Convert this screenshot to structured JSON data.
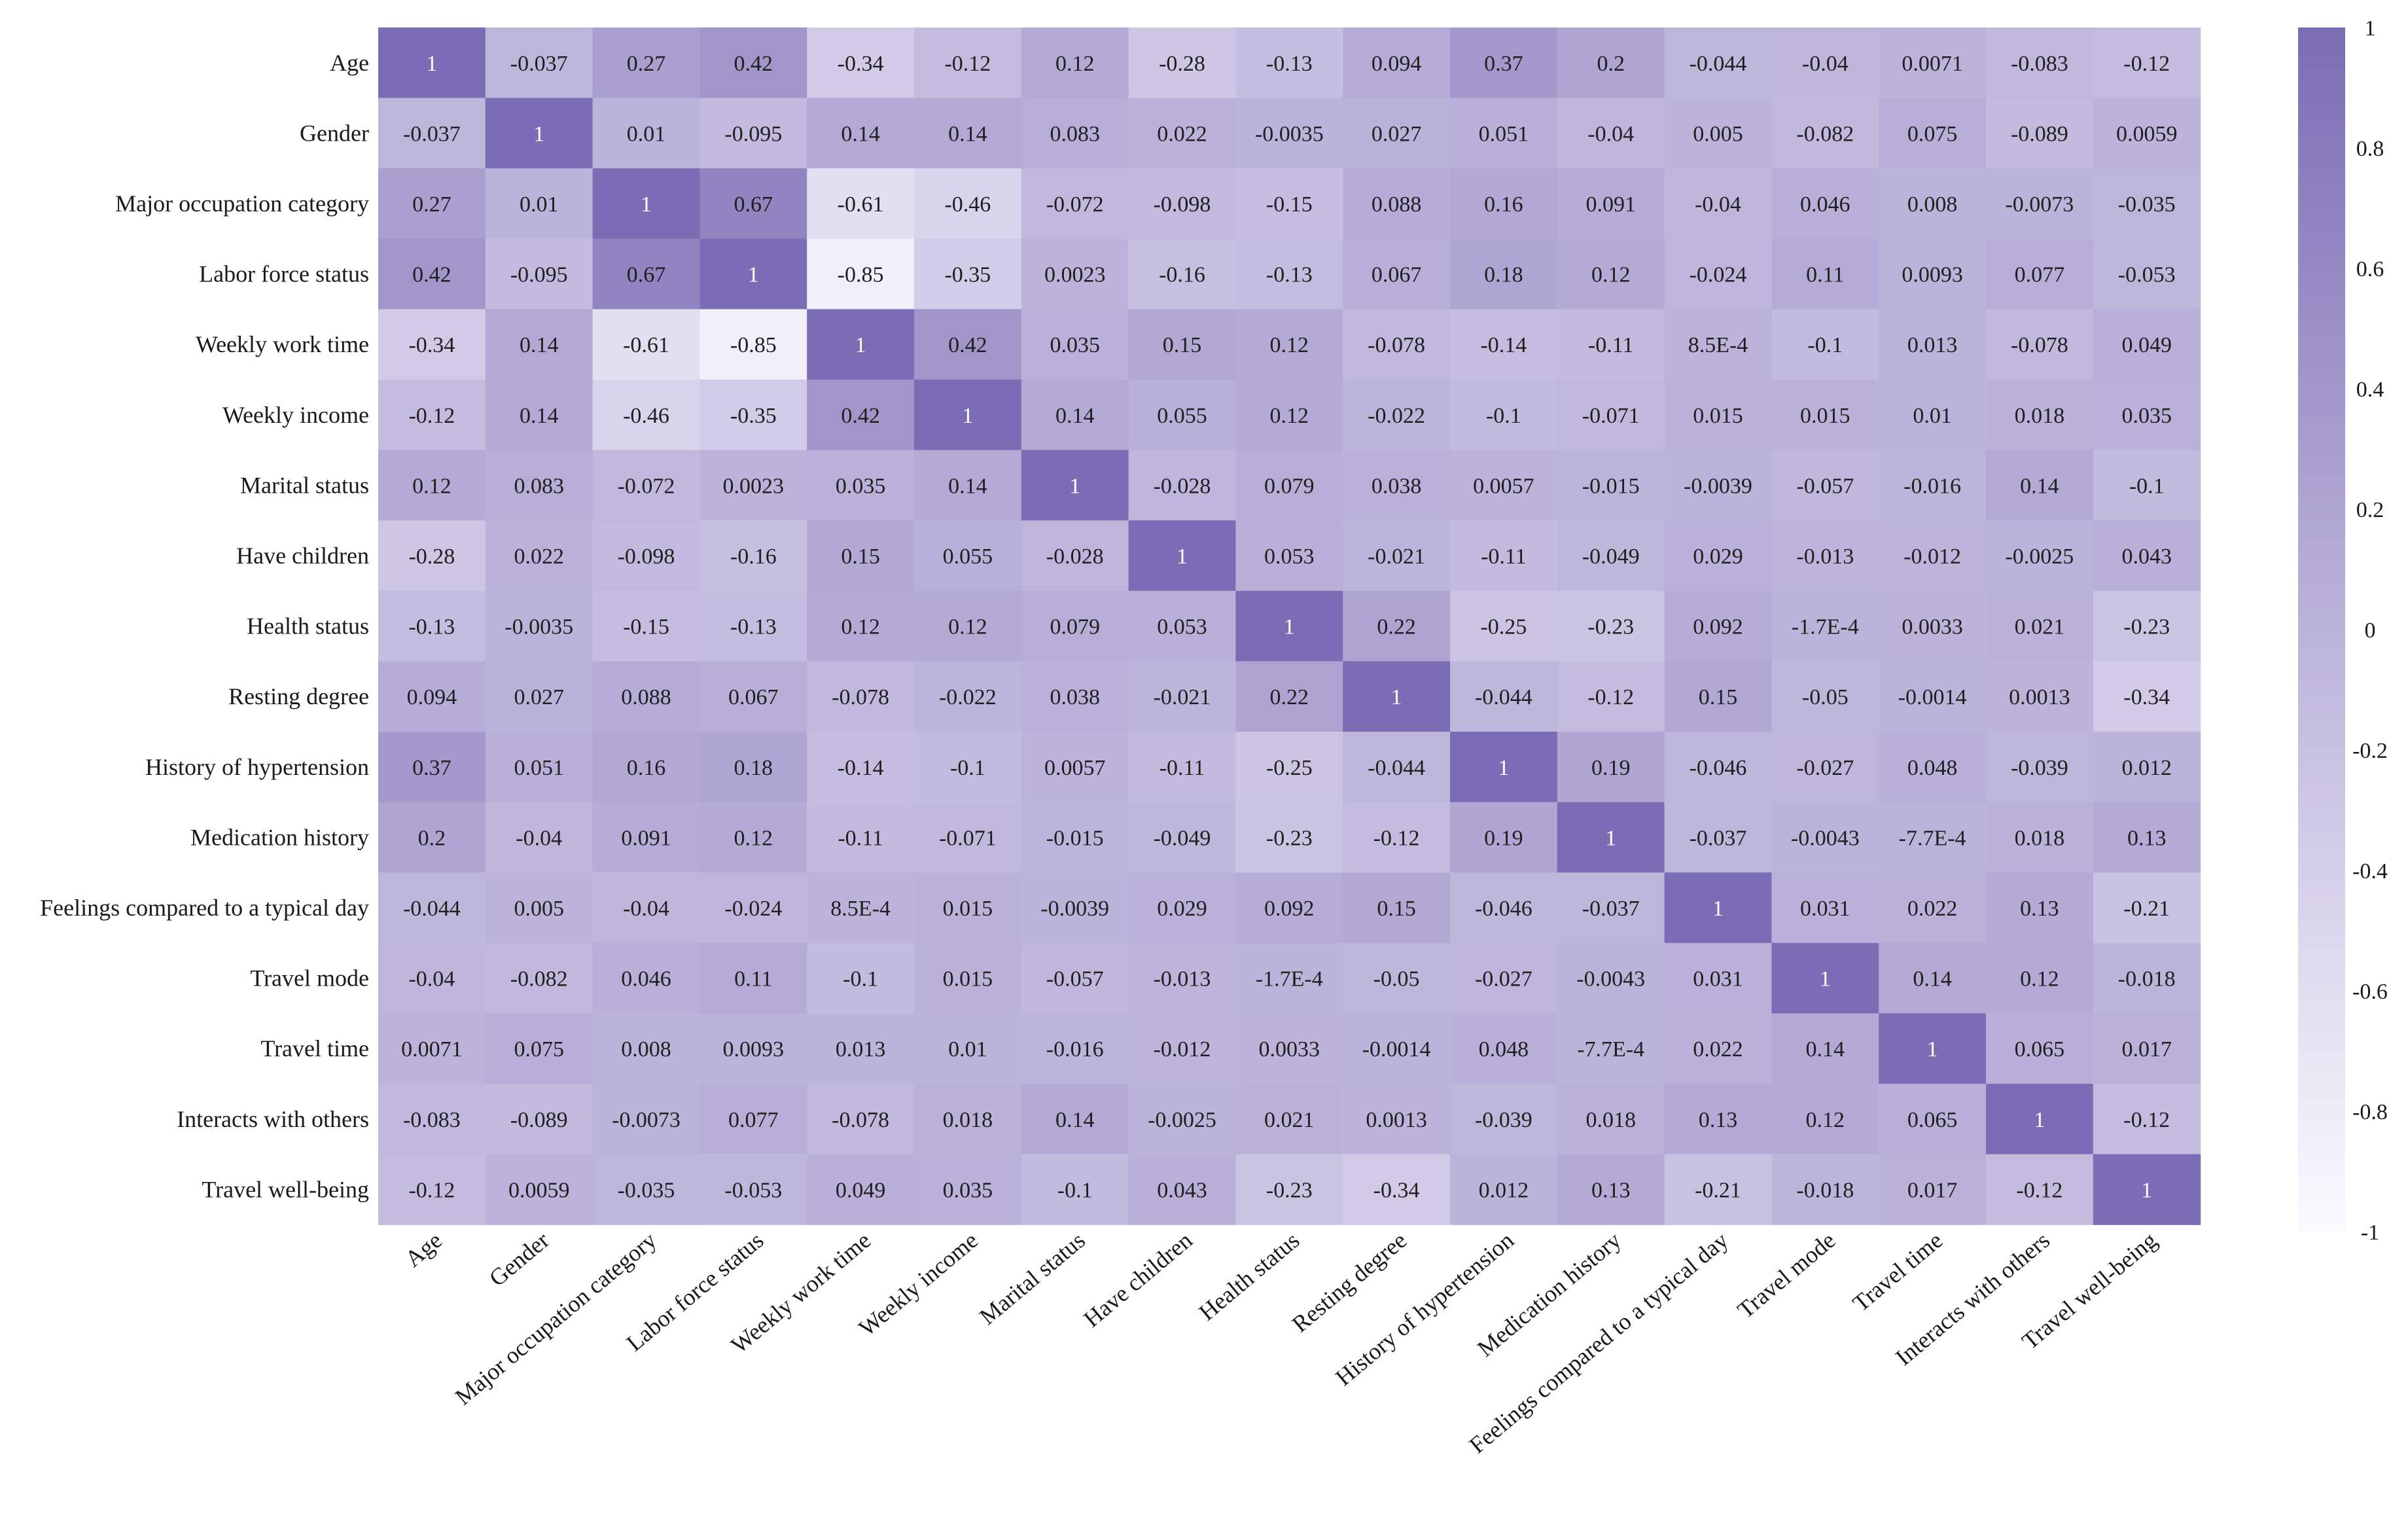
{
  "chart_data": {
    "type": "heatmap",
    "title": "",
    "variables": [
      "Age",
      "Gender",
      "Major occupation category",
      "Labor force status",
      "Weekly work time",
      "Weekly income",
      "Marital status",
      "Have children",
      "Health status",
      "Resting degree",
      "History of hypertension",
      "Medication history",
      "Feelings compared to a typical day",
      "Travel mode",
      "Travel time",
      "Interacts with others",
      "Travel well-being"
    ],
    "values": [
      [
        1,
        -0.037,
        0.27,
        0.42,
        -0.34,
        -0.12,
        0.12,
        -0.28,
        -0.13,
        0.094,
        0.37,
        0.2,
        -0.044,
        -0.04,
        0.0071,
        -0.083,
        -0.12
      ],
      [
        -0.037,
        1,
        0.01,
        -0.095,
        0.14,
        0.14,
        0.083,
        0.022,
        -0.0035,
        0.027,
        0.051,
        -0.04,
        0.005,
        -0.082,
        0.075,
        -0.089,
        0.0059
      ],
      [
        0.27,
        0.01,
        1,
        0.67,
        -0.61,
        -0.46,
        -0.072,
        -0.098,
        -0.15,
        0.088,
        0.16,
        0.091,
        -0.04,
        0.046,
        0.008,
        -0.0073,
        -0.035
      ],
      [
        0.42,
        -0.095,
        0.67,
        1,
        -0.85,
        -0.35,
        0.0023,
        -0.16,
        -0.13,
        0.067,
        0.18,
        0.12,
        -0.024,
        0.11,
        0.0093,
        0.077,
        -0.053
      ],
      [
        -0.34,
        0.14,
        -0.61,
        -0.85,
        1,
        0.42,
        0.035,
        0.15,
        0.12,
        -0.078,
        -0.14,
        -0.11,
        0.00085,
        -0.1,
        0.013,
        -0.078,
        0.049
      ],
      [
        -0.12,
        0.14,
        -0.46,
        -0.35,
        0.42,
        1,
        0.14,
        0.055,
        0.12,
        -0.022,
        -0.1,
        -0.071,
        0.015,
        0.015,
        0.01,
        0.018,
        0.035
      ],
      [
        0.12,
        0.083,
        -0.072,
        0.0023,
        0.035,
        0.14,
        1,
        -0.028,
        0.079,
        0.038,
        0.0057,
        -0.015,
        -0.0039,
        -0.057,
        -0.016,
        0.14,
        -0.1
      ],
      [
        -0.28,
        0.022,
        -0.098,
        -0.16,
        0.15,
        0.055,
        -0.028,
        1,
        0.053,
        -0.021,
        -0.11,
        -0.049,
        0.029,
        -0.013,
        -0.012,
        -0.0025,
        0.043
      ],
      [
        -0.13,
        -0.0035,
        -0.15,
        -0.13,
        0.12,
        0.12,
        0.079,
        0.053,
        1,
        0.22,
        -0.25,
        -0.23,
        0.092,
        -0.00017,
        0.0033,
        0.021,
        -0.23
      ],
      [
        0.094,
        0.027,
        0.088,
        0.067,
        -0.078,
        -0.022,
        0.038,
        -0.021,
        0.22,
        1,
        -0.044,
        -0.12,
        0.15,
        -0.05,
        -0.0014,
        0.0013,
        -0.34
      ],
      [
        0.37,
        0.051,
        0.16,
        0.18,
        -0.14,
        -0.1,
        0.0057,
        -0.11,
        -0.25,
        -0.044,
        1,
        0.19,
        -0.046,
        -0.027,
        0.048,
        -0.039,
        0.012
      ],
      [
        0.2,
        -0.04,
        0.091,
        0.12,
        -0.11,
        -0.071,
        -0.015,
        -0.049,
        -0.23,
        -0.12,
        0.19,
        1,
        -0.037,
        -0.0043,
        -0.00077,
        0.018,
        0.13
      ],
      [
        -0.044,
        0.005,
        -0.04,
        -0.024,
        0.00085,
        0.015,
        -0.0039,
        0.029,
        0.092,
        0.15,
        -0.046,
        -0.037,
        1,
        0.031,
        0.022,
        0.13,
        -0.21
      ],
      [
        -0.04,
        -0.082,
        0.046,
        0.11,
        -0.1,
        0.015,
        -0.057,
        -0.013,
        -0.00017,
        -0.05,
        -0.027,
        -0.0043,
        0.031,
        1,
        0.14,
        0.12,
        -0.018
      ],
      [
        0.0071,
        0.075,
        0.008,
        0.0093,
        0.013,
        0.01,
        -0.016,
        -0.012,
        0.0033,
        -0.0014,
        0.048,
        -0.00077,
        0.022,
        0.14,
        1,
        0.065,
        0.017
      ],
      [
        -0.083,
        -0.089,
        -0.0073,
        0.077,
        -0.078,
        0.018,
        0.14,
        -0.0025,
        0.021,
        0.0013,
        -0.039,
        0.018,
        0.13,
        0.12,
        0.065,
        1,
        -0.12
      ],
      [
        -0.12,
        0.0059,
        -0.035,
        -0.053,
        0.049,
        0.035,
        -0.1,
        0.043,
        -0.23,
        -0.34,
        0.012,
        0.13,
        -0.21,
        -0.018,
        0.017,
        -0.12,
        1
      ]
    ],
    "labels": [
      [
        "1",
        "-0.037",
        "0.27",
        "0.42",
        "-0.34",
        "-0.12",
        "0.12",
        "-0.28",
        "-0.13",
        "0.094",
        "0.37",
        "0.2",
        "-0.044",
        "-0.04",
        "0.0071",
        "-0.083",
        "-0.12"
      ],
      [
        "-0.037",
        "1",
        "0.01",
        "-0.095",
        "0.14",
        "0.14",
        "0.083",
        "0.022",
        "-0.0035",
        "0.027",
        "0.051",
        "-0.04",
        "0.005",
        "-0.082",
        "0.075",
        "-0.089",
        "0.0059"
      ],
      [
        "0.27",
        "0.01",
        "1",
        "0.67",
        "-0.61",
        "-0.46",
        "-0.072",
        "-0.098",
        "-0.15",
        "0.088",
        "0.16",
        "0.091",
        "-0.04",
        "0.046",
        "0.008",
        "-0.0073",
        "-0.035"
      ],
      [
        "0.42",
        "-0.095",
        "0.67",
        "1",
        "-0.85",
        "-0.35",
        "0.0023",
        "-0.16",
        "-0.13",
        "0.067",
        "0.18",
        "0.12",
        "-0.024",
        "0.11",
        "0.0093",
        "0.077",
        "-0.053"
      ],
      [
        "-0.34",
        "0.14",
        "-0.61",
        "-0.85",
        "1",
        "0.42",
        "0.035",
        "0.15",
        "0.12",
        "-0.078",
        "-0.14",
        "-0.11",
        "8.5E-4",
        "-0.1",
        "0.013",
        "-0.078",
        "0.049"
      ],
      [
        "-0.12",
        "0.14",
        "-0.46",
        "-0.35",
        "0.42",
        "1",
        "0.14",
        "0.055",
        "0.12",
        "-0.022",
        "-0.1",
        "-0.071",
        "0.015",
        "0.015",
        "0.01",
        "0.018",
        "0.035"
      ],
      [
        "0.12",
        "0.083",
        "-0.072",
        "0.0023",
        "0.035",
        "0.14",
        "1",
        "-0.028",
        "0.079",
        "0.038",
        "0.0057",
        "-0.015",
        "-0.0039",
        "-0.057",
        "-0.016",
        "0.14",
        "-0.1"
      ],
      [
        "-0.28",
        "0.022",
        "-0.098",
        "-0.16",
        "0.15",
        "0.055",
        "-0.028",
        "1",
        "0.053",
        "-0.021",
        "-0.11",
        "-0.049",
        "0.029",
        "-0.013",
        "-0.012",
        "-0.0025",
        "0.043"
      ],
      [
        "-0.13",
        "-0.0035",
        "-0.15",
        "-0.13",
        "0.12",
        "0.12",
        "0.079",
        "0.053",
        "1",
        "0.22",
        "-0.25",
        "-0.23",
        "0.092",
        "-1.7E-4",
        "0.0033",
        "0.021",
        "-0.23"
      ],
      [
        "0.094",
        "0.027",
        "0.088",
        "0.067",
        "-0.078",
        "-0.022",
        "0.038",
        "-0.021",
        "0.22",
        "1",
        "-0.044",
        "-0.12",
        "0.15",
        "-0.05",
        "-0.0014",
        "0.0013",
        "-0.34"
      ],
      [
        "0.37",
        "0.051",
        "0.16",
        "0.18",
        "-0.14",
        "-0.1",
        "0.0057",
        "-0.11",
        "-0.25",
        "-0.044",
        "1",
        "0.19",
        "-0.046",
        "-0.027",
        "0.048",
        "-0.039",
        "0.012"
      ],
      [
        "0.2",
        "-0.04",
        "0.091",
        "0.12",
        "-0.11",
        "-0.071",
        "-0.015",
        "-0.049",
        "-0.23",
        "-0.12",
        "0.19",
        "1",
        "-0.037",
        "-0.0043",
        "-7.7E-4",
        "0.018",
        "0.13"
      ],
      [
        "-0.044",
        "0.005",
        "-0.04",
        "-0.024",
        "8.5E-4",
        "0.015",
        "-0.0039",
        "0.029",
        "0.092",
        "0.15",
        "-0.046",
        "-0.037",
        "1",
        "0.031",
        "0.022",
        "0.13",
        "-0.21"
      ],
      [
        "-0.04",
        "-0.082",
        "0.046",
        "0.11",
        "-0.1",
        "0.015",
        "-0.057",
        "-0.013",
        "-1.7E-4",
        "-0.05",
        "-0.027",
        "-0.0043",
        "0.031",
        "1",
        "0.14",
        "0.12",
        "-0.018"
      ],
      [
        "0.0071",
        "0.075",
        "0.008",
        "0.0093",
        "0.013",
        "0.01",
        "-0.016",
        "-0.012",
        "0.0033",
        "-0.0014",
        "0.048",
        "-7.7E-4",
        "0.022",
        "0.14",
        "1",
        "0.065",
        "0.017"
      ],
      [
        "-0.083",
        "-0.089",
        "-0.0073",
        "0.077",
        "-0.078",
        "0.018",
        "0.14",
        "-0.0025",
        "0.021",
        "0.0013",
        "-0.039",
        "0.018",
        "0.13",
        "0.12",
        "0.065",
        "1",
        "-0.12"
      ],
      [
        "-0.12",
        "0.0059",
        "-0.035",
        "-0.053",
        "0.049",
        "0.035",
        "-0.1",
        "0.043",
        "-0.23",
        "-0.34",
        "0.012",
        "0.13",
        "-0.21",
        "-0.018",
        "0.017",
        "-0.12",
        "1"
      ]
    ],
    "colorbar": {
      "range": [
        -1,
        1
      ],
      "ticks": [
        "1",
        "0.8",
        "0.6",
        "0.4",
        "0.2",
        "0",
        "-0.2",
        "-0.4",
        "-0.6",
        "-0.8",
        "-1"
      ],
      "tick_values": [
        1,
        0.8,
        0.6,
        0.4,
        0.2,
        0,
        -0.2,
        -0.4,
        -0.6,
        -0.8,
        -1
      ]
    },
    "colors": {
      "low": "#fbfaff",
      "high": "#7b6db5",
      "text_dark": "#1f1f1f",
      "text_light": "#ffffff"
    }
  }
}
